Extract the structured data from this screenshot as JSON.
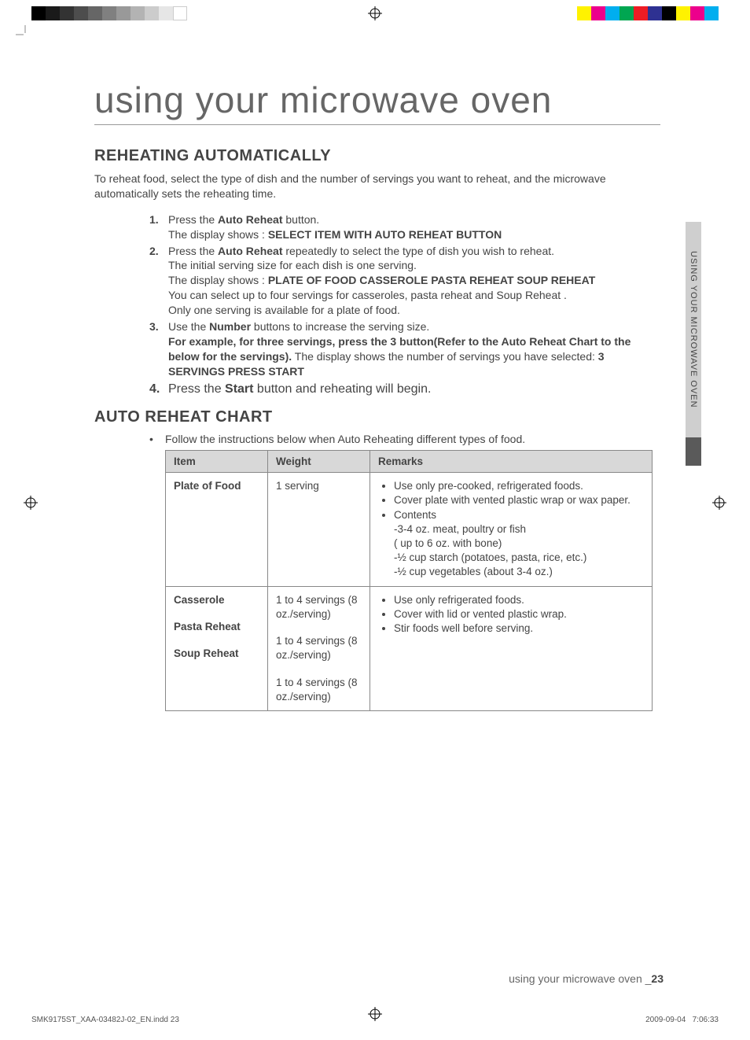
{
  "printBar": {
    "grays": [
      "#000000",
      "#1a1a1a",
      "#333333",
      "#4d4d4d",
      "#666666",
      "#808080",
      "#999999",
      "#b3b3b3",
      "#cccccc",
      "#e6e6e6",
      "#ffffff"
    ],
    "colors": [
      "#fff200",
      "#ec008c",
      "#00aeef",
      "#00a651",
      "#ed1c24",
      "#2e3192",
      "#000000",
      "#fff200",
      "#ec008c",
      "#00aeef"
    ]
  },
  "title": "using your microwave oven",
  "section1": {
    "heading": "REHEATING AUTOMATICALLY",
    "intro": "To reheat food, select the type of dish and the number of servings you want to reheat, and the microwave automatically sets the reheating time.",
    "steps": [
      {
        "num": "1.",
        "lines": [
          [
            {
              "t": "Press the "
            },
            {
              "t": "Auto Reheat",
              "b": true
            },
            {
              "t": " button."
            }
          ],
          [
            {
              "t": "The display shows : "
            },
            {
              "t": "SELECT ITEM WITH AUTO REHEAT BUTTON",
              "b": true
            }
          ]
        ]
      },
      {
        "num": "2.",
        "lines": [
          [
            {
              "t": "Press the "
            },
            {
              "t": "Auto Reheat",
              "b": true
            },
            {
              "t": " repeatedly to select the type of dish you wish to reheat."
            }
          ],
          [
            {
              "t": "The initial serving size for each dish is one serving."
            }
          ],
          [
            {
              "t": "The display shows : "
            },
            {
              "t": "PLATE OF FOOD CASSEROLE PASTA REHEAT SOUP REHEAT",
              "b": true
            }
          ],
          [
            {
              "t": "You can select up to four servings for casseroles, pasta reheat and Soup Reheat ."
            }
          ],
          [
            {
              "t": "Only one serving is available for a plate of food."
            }
          ]
        ]
      },
      {
        "num": "3.",
        "lines": [
          [
            {
              "t": "Use the "
            },
            {
              "t": "Number",
              "b": true
            },
            {
              "t": " buttons to increase the serving size."
            }
          ],
          [
            {
              "t": "For example, for three servings, press the 3 button(Refer to the Auto Reheat Chart to the below for the servings).",
              "b": true
            },
            {
              "t": " The display shows the number of servings you have selected: "
            },
            {
              "t": "3 SERVINGS PRESS START",
              "b": true
            }
          ]
        ]
      },
      {
        "num": "4.",
        "big": true,
        "lines": [
          [
            {
              "t": "Press the "
            },
            {
              "t": "Start",
              "b": true
            },
            {
              "t": " button and reheating will begin."
            }
          ]
        ]
      }
    ]
  },
  "section2": {
    "heading": "AUTO REHEAT CHART",
    "intro": "Follow the instructions below when Auto Reheating different types of food.",
    "headers": [
      "Item",
      "Weight",
      "Remarks"
    ],
    "row1": {
      "item": "Plate of Food",
      "weight": "1 serving",
      "remarks": [
        "Use only pre-cooked, refrigerated foods.",
        "Cover plate with vented plastic wrap or wax paper.",
        "Contents"
      ],
      "contents": [
        "-3-4 oz. meat, poultry or fish",
        "( up to 6 oz. with bone)",
        "-½ cup starch (potatoes, pasta, rice, etc.)",
        "-½ cup vegetables (about 3-4 oz.)"
      ]
    },
    "row2": {
      "items": [
        {
          "name": "Casserole",
          "weight": "1 to 4 servings (8 oz./serving)"
        },
        {
          "name": "Pasta Reheat",
          "weight": "1 to 4 servings (8 oz./serving)"
        },
        {
          "name": "Soup Reheat",
          "weight": "1 to 4 servings (8 oz./serving)"
        }
      ],
      "remarks": [
        "Use only refrigerated foods.",
        "Cover with lid or vented plastic wrap.",
        "Stir foods well before serving."
      ]
    }
  },
  "sideTab": "USING YOUR MICROWAVE OVEN",
  "footer": {
    "label": "using your microwave oven _",
    "page": "23"
  },
  "meta": {
    "file": "SMK9175ST_XAA-03482J-02_EN.indd   23",
    "date": "2009-09-04",
    "time": "7:06:33"
  }
}
